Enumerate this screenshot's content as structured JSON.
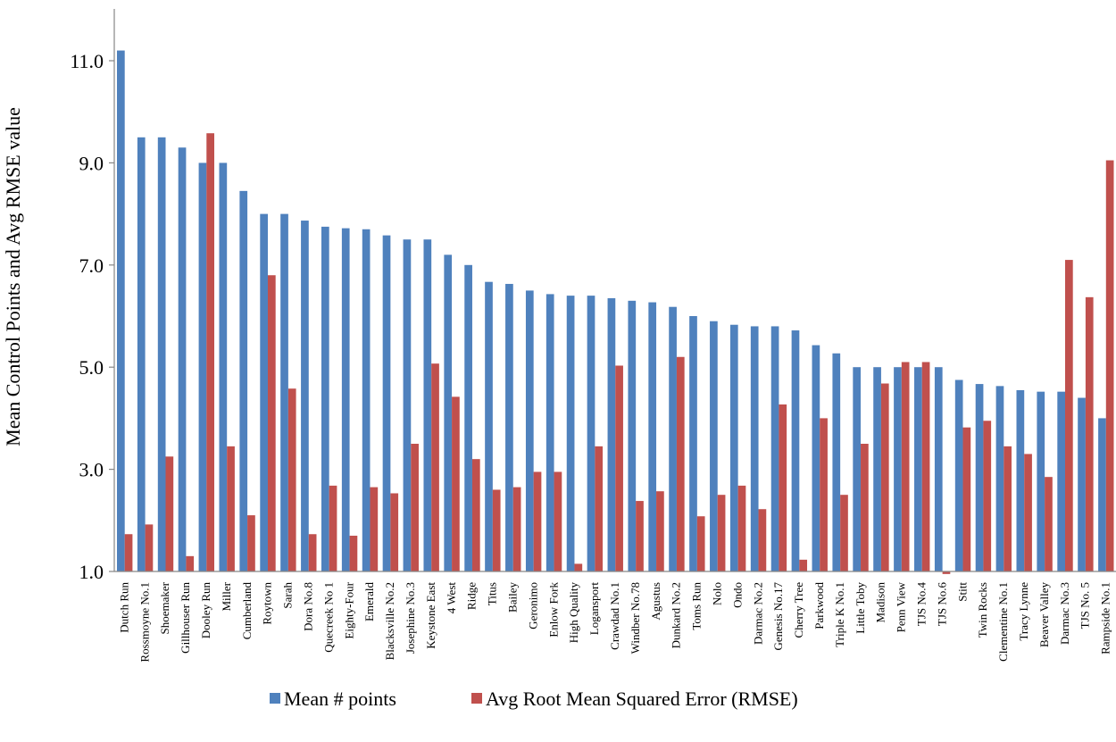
{
  "chart_data": {
    "type": "bar",
    "title": "",
    "xlabel": "",
    "ylabel": "Mean Control Points and Avg RMSE value",
    "ylim": [
      1.0,
      12.0
    ],
    "yticks": [
      "1.0",
      "3.0",
      "5.0",
      "7.0",
      "9.0",
      "11.0"
    ],
    "grid": false,
    "legend_position": "bottom",
    "categories": [
      "Dutch Run",
      "Rossmoyne No.1",
      "Shoemaker",
      "Gillhouser Run",
      "Dooley Run",
      "Miller",
      "Cumberland",
      "Roytown",
      "Sarah",
      "Dora No.8",
      "Quecreek No 1",
      "Eighty-Four",
      "Emerald",
      "Blacksville No.2",
      "Josephine No.3",
      "Keystone East",
      "4 West",
      "Ridge",
      "Titus",
      "Bailey",
      "Geronimo",
      "Enlow Fork",
      "High Quality",
      "Logansport",
      "Crawdad No.1",
      "Windber No.78",
      "Agustus",
      "Dunkard No.2",
      "Toms Run",
      "Nolo",
      "Ondo",
      "Darmac No.2",
      "Genesis No.17",
      "Cherry Tree",
      "Parkwood",
      "Triple K No.1",
      "Little Toby",
      "Madison",
      "Penn View",
      "TJS No.4",
      "TJS No.6",
      "Stitt",
      "Twin Rocks",
      "Clementine No.1",
      "Tracy Lynne",
      "Beaver Valley",
      "Darmac No.3",
      "TJS No. 5",
      "Rampside No.1"
    ],
    "series": [
      {
        "name": "Mean # points",
        "color": "#4F81BD",
        "values": [
          11.2,
          9.5,
          9.5,
          9.3,
          9.0,
          9.0,
          8.45,
          8.0,
          8.0,
          7.87,
          7.75,
          7.72,
          7.7,
          7.58,
          7.5,
          7.5,
          7.2,
          7.0,
          6.67,
          6.63,
          6.5,
          6.43,
          6.4,
          6.4,
          6.35,
          6.3,
          6.27,
          6.18,
          6.0,
          5.9,
          5.83,
          5.8,
          5.8,
          5.72,
          5.43,
          5.27,
          5.0,
          5.0,
          5.0,
          5.0,
          5.0,
          4.75,
          4.67,
          4.63,
          4.55,
          4.52,
          4.52,
          4.4,
          4.0
        ]
      },
      {
        "name": "Avg Root Mean Squared Error (RMSE)",
        "color": "#C0504D",
        "values": [
          1.73,
          1.92,
          3.25,
          1.3,
          9.58,
          3.45,
          2.1,
          6.8,
          4.58,
          1.73,
          2.68,
          1.7,
          2.65,
          2.53,
          3.5,
          5.07,
          4.42,
          3.2,
          2.6,
          2.65,
          2.95,
          2.95,
          1.15,
          3.45,
          5.03,
          2.38,
          2.57,
          5.2,
          2.08,
          2.5,
          2.68,
          2.22,
          4.27,
          1.23,
          4.0,
          2.5,
          3.5,
          4.68,
          5.1,
          5.1,
          0.95,
          3.82,
          3.95,
          3.45,
          3.3,
          2.85,
          7.1,
          6.37,
          9.05
        ]
      }
    ]
  }
}
